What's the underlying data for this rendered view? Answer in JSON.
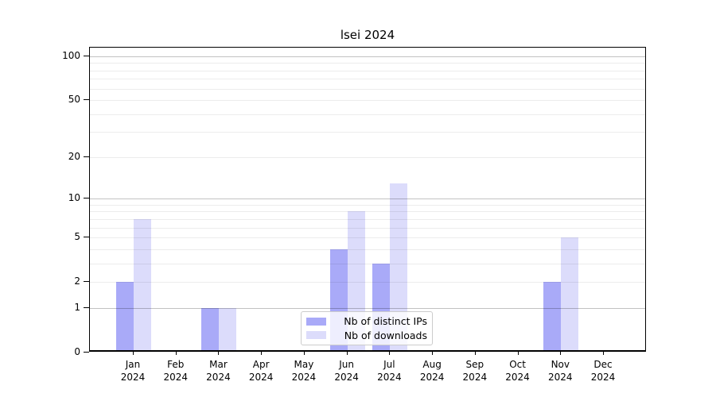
{
  "chart_data": {
    "type": "bar",
    "title": "lsei 2024",
    "categories": [
      "Jan 2024",
      "Feb 2024",
      "Mar 2024",
      "Apr 2024",
      "May 2024",
      "Jun 2024",
      "Jul 2024",
      "Aug 2024",
      "Sep 2024",
      "Oct 2024",
      "Nov 2024",
      "Dec 2024"
    ],
    "series": [
      {
        "name": "Nb of distinct IPs",
        "color": "#a9aaf8",
        "values": [
          2,
          0,
          1,
          0,
          0,
          4,
          3,
          0,
          0,
          0,
          2,
          0
        ]
      },
      {
        "name": "Nb of downloads",
        "color": "#dcdcfb",
        "values": [
          7,
          0,
          1,
          0,
          0,
          8,
          13,
          0,
          0,
          0,
          5,
          0
        ]
      }
    ],
    "y_axis": {
      "scale": "log1p",
      "ticks": [
        0,
        1,
        2,
        5,
        10,
        20,
        50,
        100
      ],
      "major_gridlines": [
        1,
        10,
        100
      ],
      "minor_gridlines": [
        2,
        3,
        4,
        5,
        6,
        7,
        8,
        9,
        20,
        30,
        40,
        50,
        60,
        70,
        80,
        90
      ],
      "ylim": [
        0,
        100
      ]
    },
    "x_axis": {
      "tick_year_line": "2024"
    },
    "legend": {
      "position": "bottom-center"
    },
    "grid": true,
    "colors": {
      "axis": "#000000",
      "grid_major": "#c2c2c2",
      "grid_minor": "#ececec",
      "legend_border": "#cccccc",
      "background": "#ffffff"
    }
  }
}
